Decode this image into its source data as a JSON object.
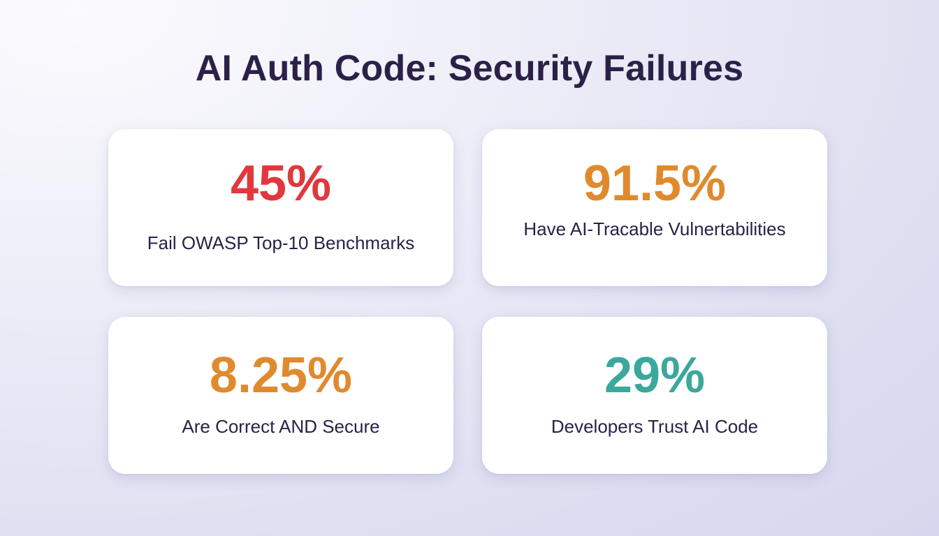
{
  "title": "AI Auth Code: Security Failures",
  "stats": [
    {
      "value": "45%",
      "label": "Fail OWASP Top-10 Benchmarks",
      "color": "#e0383e"
    },
    {
      "value": "91.5%",
      "label": "Have AI-Tracable Vulnertabilities",
      "color": "#e08a2e"
    },
    {
      "value": "8.25%",
      "label": "Are Correct AND Secure",
      "color": "#e08a2e"
    },
    {
      "value": "29%",
      "label": "Developers Trust AI Code",
      "color": "#3aa89c"
    }
  ]
}
